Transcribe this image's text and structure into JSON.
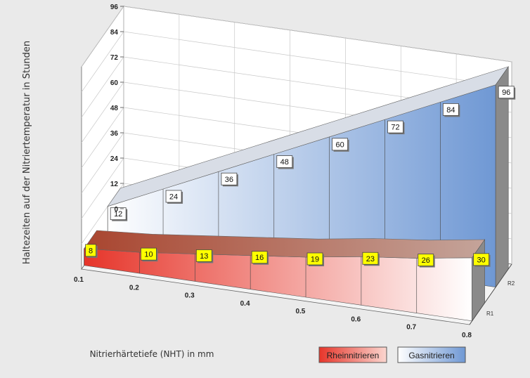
{
  "chart_data": {
    "type": "area",
    "x": [
      0.1,
      0.2,
      0.3,
      0.4,
      0.5,
      0.6,
      0.7,
      0.8
    ],
    "x_tick_labels": [
      "0.1",
      "0.2",
      "0.3",
      "0.4",
      "0.5",
      "0.6",
      "0.7",
      "0.8"
    ],
    "y_tick_labels": [
      "0",
      "12",
      "24",
      "36",
      "48",
      "60",
      "72",
      "84",
      "96"
    ],
    "depth_labels": [
      "R1",
      "R2"
    ],
    "ylim": [
      0,
      96
    ],
    "xlim": [
      0.1,
      0.8
    ],
    "xlabel": "Nitrierhärtetiefe (NHT) in mm",
    "ylabel": "Haltezeiten auf der Nitriertemperatur in Stunden",
    "series": [
      {
        "name": "Rheinnitrieren",
        "depth": "R1",
        "values": [
          8,
          10,
          13,
          16,
          19,
          23,
          26,
          30
        ],
        "color_start": "#e6352a",
        "color_end": "#ffffff",
        "label_bg": "#ffff00"
      },
      {
        "name": "Gasnitrieren",
        "depth": "R2",
        "values": [
          12,
          24,
          36,
          48,
          60,
          72,
          84,
          96
        ],
        "color_start": "#ffffff",
        "color_end": "#6f98d4",
        "label_bg": "#ffffff"
      }
    ],
    "legend": {
      "position": "bottom-right",
      "items": [
        "Rheinnitrieren",
        "Gasnitrieren"
      ]
    },
    "grid": true,
    "background": "#eaeaea"
  }
}
